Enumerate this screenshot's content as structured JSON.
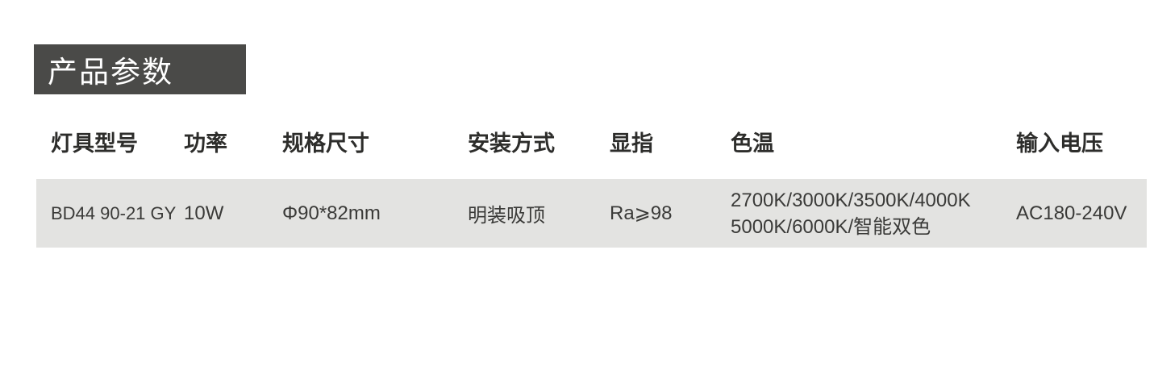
{
  "section_title": {
    "label": "产品参数",
    "background_color": "#4a4a48",
    "text_color": "#ffffff"
  },
  "table": {
    "row_background_color": "#e3e3e1",
    "header_text_color": "#2d2d2b",
    "data_text_color": "#3a3a38",
    "columns": [
      {
        "key": "model",
        "label": "灯具型号"
      },
      {
        "key": "power",
        "label": "功率"
      },
      {
        "key": "size",
        "label": "规格尺寸"
      },
      {
        "key": "install",
        "label": "安装方式"
      },
      {
        "key": "cri",
        "label": "显指"
      },
      {
        "key": "cct",
        "label": "色温"
      },
      {
        "key": "voltage",
        "label": "输入电压"
      }
    ],
    "rows": [
      {
        "model": "BD44 90-21 GY",
        "power": "10W",
        "size": "Φ90*82mm",
        "install": "明装吸顶",
        "cri": "Ra⩾98",
        "cct_line1": "2700K/3000K/3500K/4000K",
        "cct_line2": "5000K/6000K/智能双色",
        "voltage": "AC180-240V"
      }
    ]
  }
}
